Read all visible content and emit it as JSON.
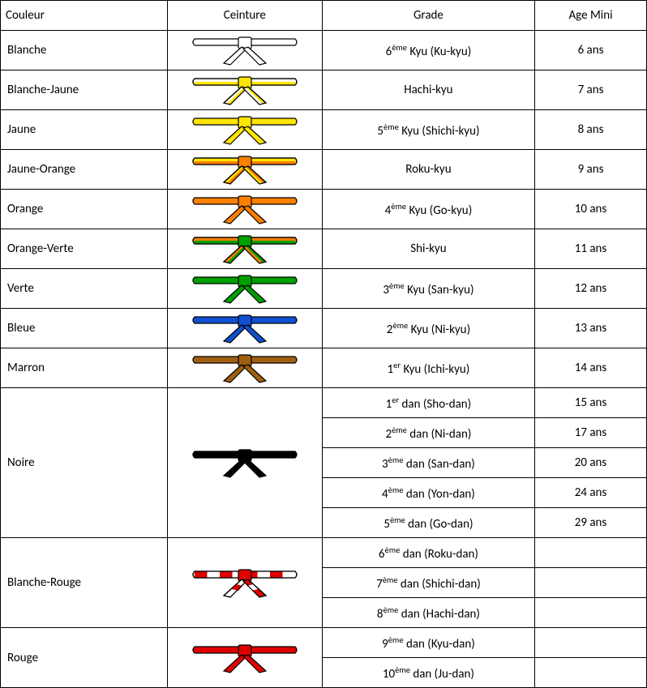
{
  "headers": {
    "couleur": "Couleur",
    "ceinture": "Ceinture",
    "grade": "Grade",
    "age": "Age Mini"
  },
  "belts": [
    {
      "couleur": "Blanche",
      "belt_colors": [
        "#ffffff"
      ],
      "grade_pre": "6",
      "grade_sup": "ème",
      "grade_post": " Kyu (Ku-kyu)",
      "age": "6 ans",
      "rowspan": 1
    },
    {
      "couleur": "Blanche-Jaune",
      "belt_colors": [
        "#ffffff",
        "#ffe600"
      ],
      "grade_pre": "",
      "grade_sup": "",
      "grade_post": "Hachi-kyu",
      "age": "7 ans",
      "rowspan": 1
    },
    {
      "couleur": "Jaune",
      "belt_colors": [
        "#ffe600"
      ],
      "grade_pre": "5",
      "grade_sup": "ème",
      "grade_post": " Kyu (Shichi-kyu)",
      "age": "8 ans",
      "rowspan": 1
    },
    {
      "couleur": "Jaune-Orange",
      "belt_colors": [
        "#ffe600",
        "#ff7f00"
      ],
      "grade_pre": "",
      "grade_sup": "",
      "grade_post": "Roku-kyu",
      "age": "9 ans",
      "rowspan": 1
    },
    {
      "couleur": "Orange",
      "belt_colors": [
        "#ff7f00"
      ],
      "grade_pre": "4",
      "grade_sup": "ème",
      "grade_post": " Kyu (Go-kyu)",
      "age": "10 ans",
      "rowspan": 1
    },
    {
      "couleur": "Orange-Verte",
      "belt_colors": [
        "#ff7f00",
        "#00a000"
      ],
      "grade_pre": "",
      "grade_sup": "",
      "grade_post": "Shi-kyu",
      "age": "11 ans",
      "rowspan": 1
    },
    {
      "couleur": "Verte",
      "belt_colors": [
        "#00a000"
      ],
      "grade_pre": "3",
      "grade_sup": "ème",
      "grade_post": " Kyu (San-kyu)",
      "age": "12 ans",
      "rowspan": 1
    },
    {
      "couleur": "Bleue",
      "belt_colors": [
        "#1050d0"
      ],
      "grade_pre": "2",
      "grade_sup": "ème",
      "grade_post": " Kyu (Ni-kyu)",
      "age": "13 ans",
      "rowspan": 1
    },
    {
      "couleur": "Marron",
      "belt_colors": [
        "#a06010"
      ],
      "grade_pre": "1",
      "grade_sup": "er",
      "grade_post": " Kyu (Ichi-kyu)",
      "age": "14 ans",
      "rowspan": 1
    },
    {
      "couleur": "Noire",
      "belt_colors": [
        "#000000"
      ],
      "rowspan": 5,
      "grades": [
        {
          "grade_pre": "1",
          "grade_sup": "er",
          "grade_post": " dan (Sho-dan)",
          "age": "15 ans"
        },
        {
          "grade_pre": "2",
          "grade_sup": "ème",
          "grade_post": " dan (Ni-dan)",
          "age": "17 ans"
        },
        {
          "grade_pre": "3",
          "grade_sup": "ème",
          "grade_post": " dan (San-dan)",
          "age": "20 ans"
        },
        {
          "grade_pre": "4",
          "grade_sup": "ème",
          "grade_post": " dan (Yon-dan)",
          "age": "24 ans"
        },
        {
          "grade_pre": "5",
          "grade_sup": "ème",
          "grade_post": " dan (Go-dan)",
          "age": "29 ans"
        }
      ]
    },
    {
      "couleur": "Blanche-Rouge",
      "belt_colors": [
        "#ffffff",
        "#e00000"
      ],
      "belt_style": "panels",
      "rowspan": 3,
      "grades": [
        {
          "grade_pre": "6",
          "grade_sup": "ème",
          "grade_post": " dan (Roku-dan)",
          "age": ""
        },
        {
          "grade_pre": "7",
          "grade_sup": "ème",
          "grade_post": " dan (Shichi-dan)",
          "age": ""
        },
        {
          "grade_pre": "8",
          "grade_sup": "ème",
          "grade_post": " dan (Hachi-dan)",
          "age": ""
        }
      ]
    },
    {
      "couleur": "Rouge",
      "belt_colors": [
        "#e00000"
      ],
      "rowspan": 2,
      "grades": [
        {
          "grade_pre": "9",
          "grade_sup": "ème",
          "grade_post": " dan (Kyu-dan)",
          "age": ""
        },
        {
          "grade_pre": "10",
          "grade_sup": "ème",
          "grade_post": " dan (Ju-dan)",
          "age": ""
        }
      ]
    }
  ],
  "stroke_color": "#000000"
}
